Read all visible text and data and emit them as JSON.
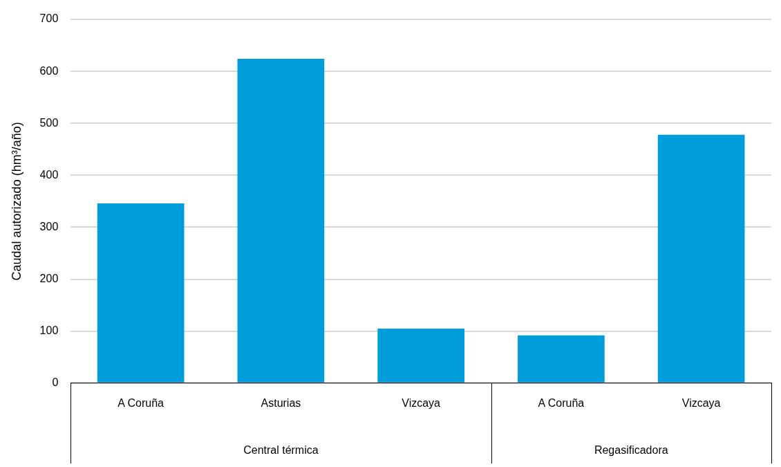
{
  "chart_data": {
    "type": "bar",
    "ylabel": "Caudal autorizado (hm³/año)",
    "categories": [
      "A Coruña",
      "Asturias",
      "Vizcaya",
      "A Coruña",
      "Vizcaya"
    ],
    "values": [
      346,
      624,
      105,
      92,
      478
    ],
    "color": "#009ddb",
    "ylim": [
      0,
      700
    ],
    "yticks": [
      0,
      100,
      200,
      300,
      400,
      500,
      600,
      700
    ],
    "grid": "y",
    "legend": false,
    "annotations": [
      "Central térmica",
      "Regasificadora"
    ]
  }
}
